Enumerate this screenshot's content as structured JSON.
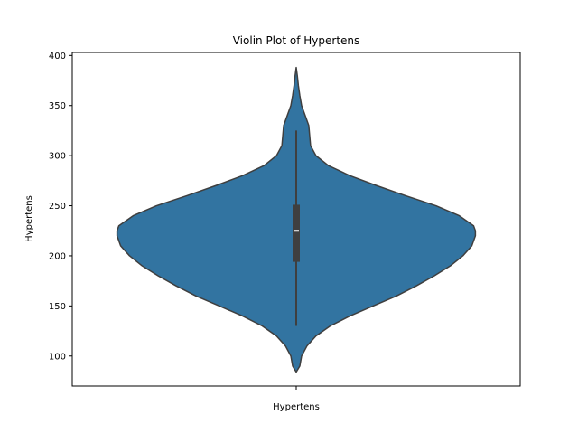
{
  "chart_data": {
    "type": "violin",
    "title": "Violin Plot of Hypertens",
    "xlabel": "",
    "ylabel": "Hypertens",
    "categories": [
      "Hypertens"
    ],
    "ylim": [
      70,
      403
    ],
    "yticks": [
      100,
      150,
      200,
      250,
      300,
      350,
      400
    ],
    "grid": false,
    "legend": "none",
    "violin_color": "#3274a1",
    "edge_color": "#3f3f3f",
    "series": [
      {
        "category": "Hypertens",
        "density": [
          {
            "y": 84,
            "w": 0.0
          },
          {
            "y": 90,
            "w": 0.02
          },
          {
            "y": 100,
            "w": 0.03
          },
          {
            "y": 110,
            "w": 0.06
          },
          {
            "y": 120,
            "w": 0.11
          },
          {
            "y": 130,
            "w": 0.19
          },
          {
            "y": 140,
            "w": 0.3
          },
          {
            "y": 150,
            "w": 0.43
          },
          {
            "y": 160,
            "w": 0.56
          },
          {
            "y": 170,
            "w": 0.67
          },
          {
            "y": 180,
            "w": 0.77
          },
          {
            "y": 190,
            "w": 0.86
          },
          {
            "y": 200,
            "w": 0.93
          },
          {
            "y": 210,
            "w": 0.98
          },
          {
            "y": 220,
            "w": 1.0
          },
          {
            "y": 225,
            "w": 1.0
          },
          {
            "y": 230,
            "w": 0.99
          },
          {
            "y": 240,
            "w": 0.91
          },
          {
            "y": 250,
            "w": 0.78
          },
          {
            "y": 260,
            "w": 0.61
          },
          {
            "y": 270,
            "w": 0.45
          },
          {
            "y": 280,
            "w": 0.3
          },
          {
            "y": 290,
            "w": 0.18
          },
          {
            "y": 300,
            "w": 0.11
          },
          {
            "y": 310,
            "w": 0.08
          },
          {
            "y": 320,
            "w": 0.075
          },
          {
            "y": 330,
            "w": 0.07
          },
          {
            "y": 340,
            "w": 0.05
          },
          {
            "y": 350,
            "w": 0.03
          },
          {
            "y": 360,
            "w": 0.02
          },
          {
            "y": 370,
            "w": 0.012
          },
          {
            "y": 380,
            "w": 0.006
          },
          {
            "y": 388,
            "w": 0.0
          }
        ],
        "whisker_low": 130,
        "q1": 194,
        "median": 225,
        "q3": 251,
        "whisker_high": 325
      }
    ]
  }
}
